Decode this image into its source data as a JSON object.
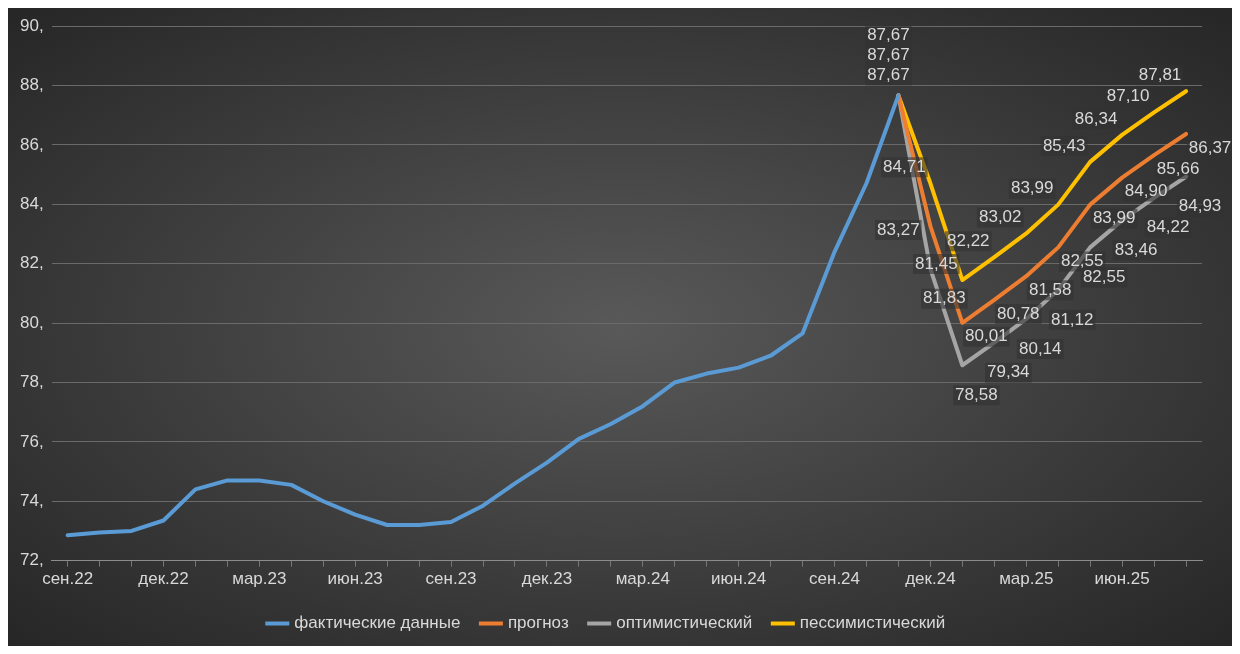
{
  "chart_data": {
    "type": "line",
    "categories": [
      "сен.22",
      null,
      null,
      "дек.22",
      null,
      null,
      "мар.23",
      null,
      null,
      "июн.23",
      null,
      null,
      "сен.23",
      null,
      null,
      "дек.23",
      null,
      null,
      "мар.24",
      null,
      null,
      "июн.24",
      null,
      null,
      "сен.24",
      null,
      null,
      "дек.24",
      null,
      null,
      "мар.25",
      null,
      null,
      "июн.25",
      null,
      null
    ],
    "ylim": [
      72,
      90
    ],
    "yticks": [
      {
        "value": 72,
        "label": "72,"
      },
      {
        "value": 74,
        "label": "74,"
      },
      {
        "value": 76,
        "label": "76,"
      },
      {
        "value": 78,
        "label": "78,"
      },
      {
        "value": 80,
        "label": "80,"
      },
      {
        "value": 82,
        "label": "82,"
      },
      {
        "value": 84,
        "label": "84,"
      },
      {
        "value": 86,
        "label": "86,"
      },
      {
        "value": 88,
        "label": "88,"
      },
      {
        "value": 90,
        "label": "90,"
      }
    ],
    "grid": "y",
    "legend": "bottom",
    "marker": "none",
    "line_style": "solid",
    "series": [
      {
        "name": "фактические данные",
        "color": "#5b9bd5",
        "values": [
          72.85,
          72.95,
          73.0,
          73.35,
          74.4,
          74.7,
          74.7,
          74.55,
          74.0,
          73.55,
          73.2,
          73.2,
          73.3,
          73.85,
          74.6,
          75.3,
          76.1,
          76.6,
          77.2,
          78.0,
          78.3,
          78.5,
          78.9,
          79.65,
          82.4,
          84.71,
          87.67,
          null,
          null,
          null,
          null,
          null,
          null,
          null,
          null,
          null
        ]
      },
      {
        "name": "прогноз",
        "color": "#ed7d31",
        "values": [
          null,
          null,
          null,
          null,
          null,
          null,
          null,
          null,
          null,
          null,
          null,
          null,
          null,
          null,
          null,
          null,
          null,
          null,
          null,
          null,
          null,
          null,
          null,
          null,
          null,
          null,
          87.67,
          83.27,
          80.01,
          80.78,
          81.58,
          82.55,
          83.99,
          84.9,
          85.66,
          86.37
        ],
        "value_labels": [
          null,
          null,
          null,
          null,
          null,
          null,
          null,
          null,
          null,
          null,
          null,
          null,
          null,
          null,
          null,
          null,
          null,
          null,
          null,
          null,
          null,
          null,
          null,
          null,
          null,
          null,
          "87,67",
          "83,27",
          "80,01",
          "80,78",
          "81,58",
          "82,55",
          "83,99",
          "84,90",
          "85,66",
          "86,37"
        ]
      },
      {
        "name": "оптимистический",
        "color": "#a5a5a5",
        "values": [
          null,
          null,
          null,
          null,
          null,
          null,
          null,
          null,
          null,
          null,
          null,
          null,
          null,
          null,
          null,
          null,
          null,
          null,
          null,
          null,
          null,
          null,
          null,
          null,
          null,
          null,
          87.67,
          81.83,
          78.58,
          79.34,
          80.14,
          81.12,
          82.55,
          83.46,
          84.22,
          84.93
        ],
        "value_labels": [
          null,
          null,
          null,
          null,
          null,
          null,
          null,
          null,
          null,
          null,
          null,
          null,
          null,
          null,
          null,
          null,
          null,
          null,
          null,
          null,
          null,
          null,
          null,
          null,
          null,
          null,
          "87,67",
          "81,83",
          "78,58",
          "79,34",
          "80,14",
          "81,12",
          "82,55",
          "83,46",
          "84,22",
          "84,93"
        ]
      },
      {
        "name": "пессимистический",
        "color": "#ffc000",
        "values": [
          null,
          null,
          null,
          null,
          null,
          null,
          null,
          null,
          null,
          null,
          null,
          null,
          null,
          null,
          null,
          null,
          null,
          null,
          null,
          null,
          null,
          null,
          null,
          null,
          null,
          null,
          87.67,
          84.71,
          81.45,
          82.22,
          83.02,
          83.99,
          85.43,
          86.34,
          87.1,
          87.81
        ],
        "value_labels": [
          null,
          null,
          null,
          null,
          null,
          null,
          null,
          null,
          null,
          null,
          null,
          null,
          null,
          null,
          null,
          null,
          null,
          null,
          null,
          null,
          null,
          null,
          null,
          null,
          null,
          null,
          "87,67",
          "84,71",
          "81,45",
          "82,22",
          "83,02",
          "83,99",
          "85,43",
          "86,34",
          "87,10",
          "87,81"
        ]
      }
    ]
  }
}
